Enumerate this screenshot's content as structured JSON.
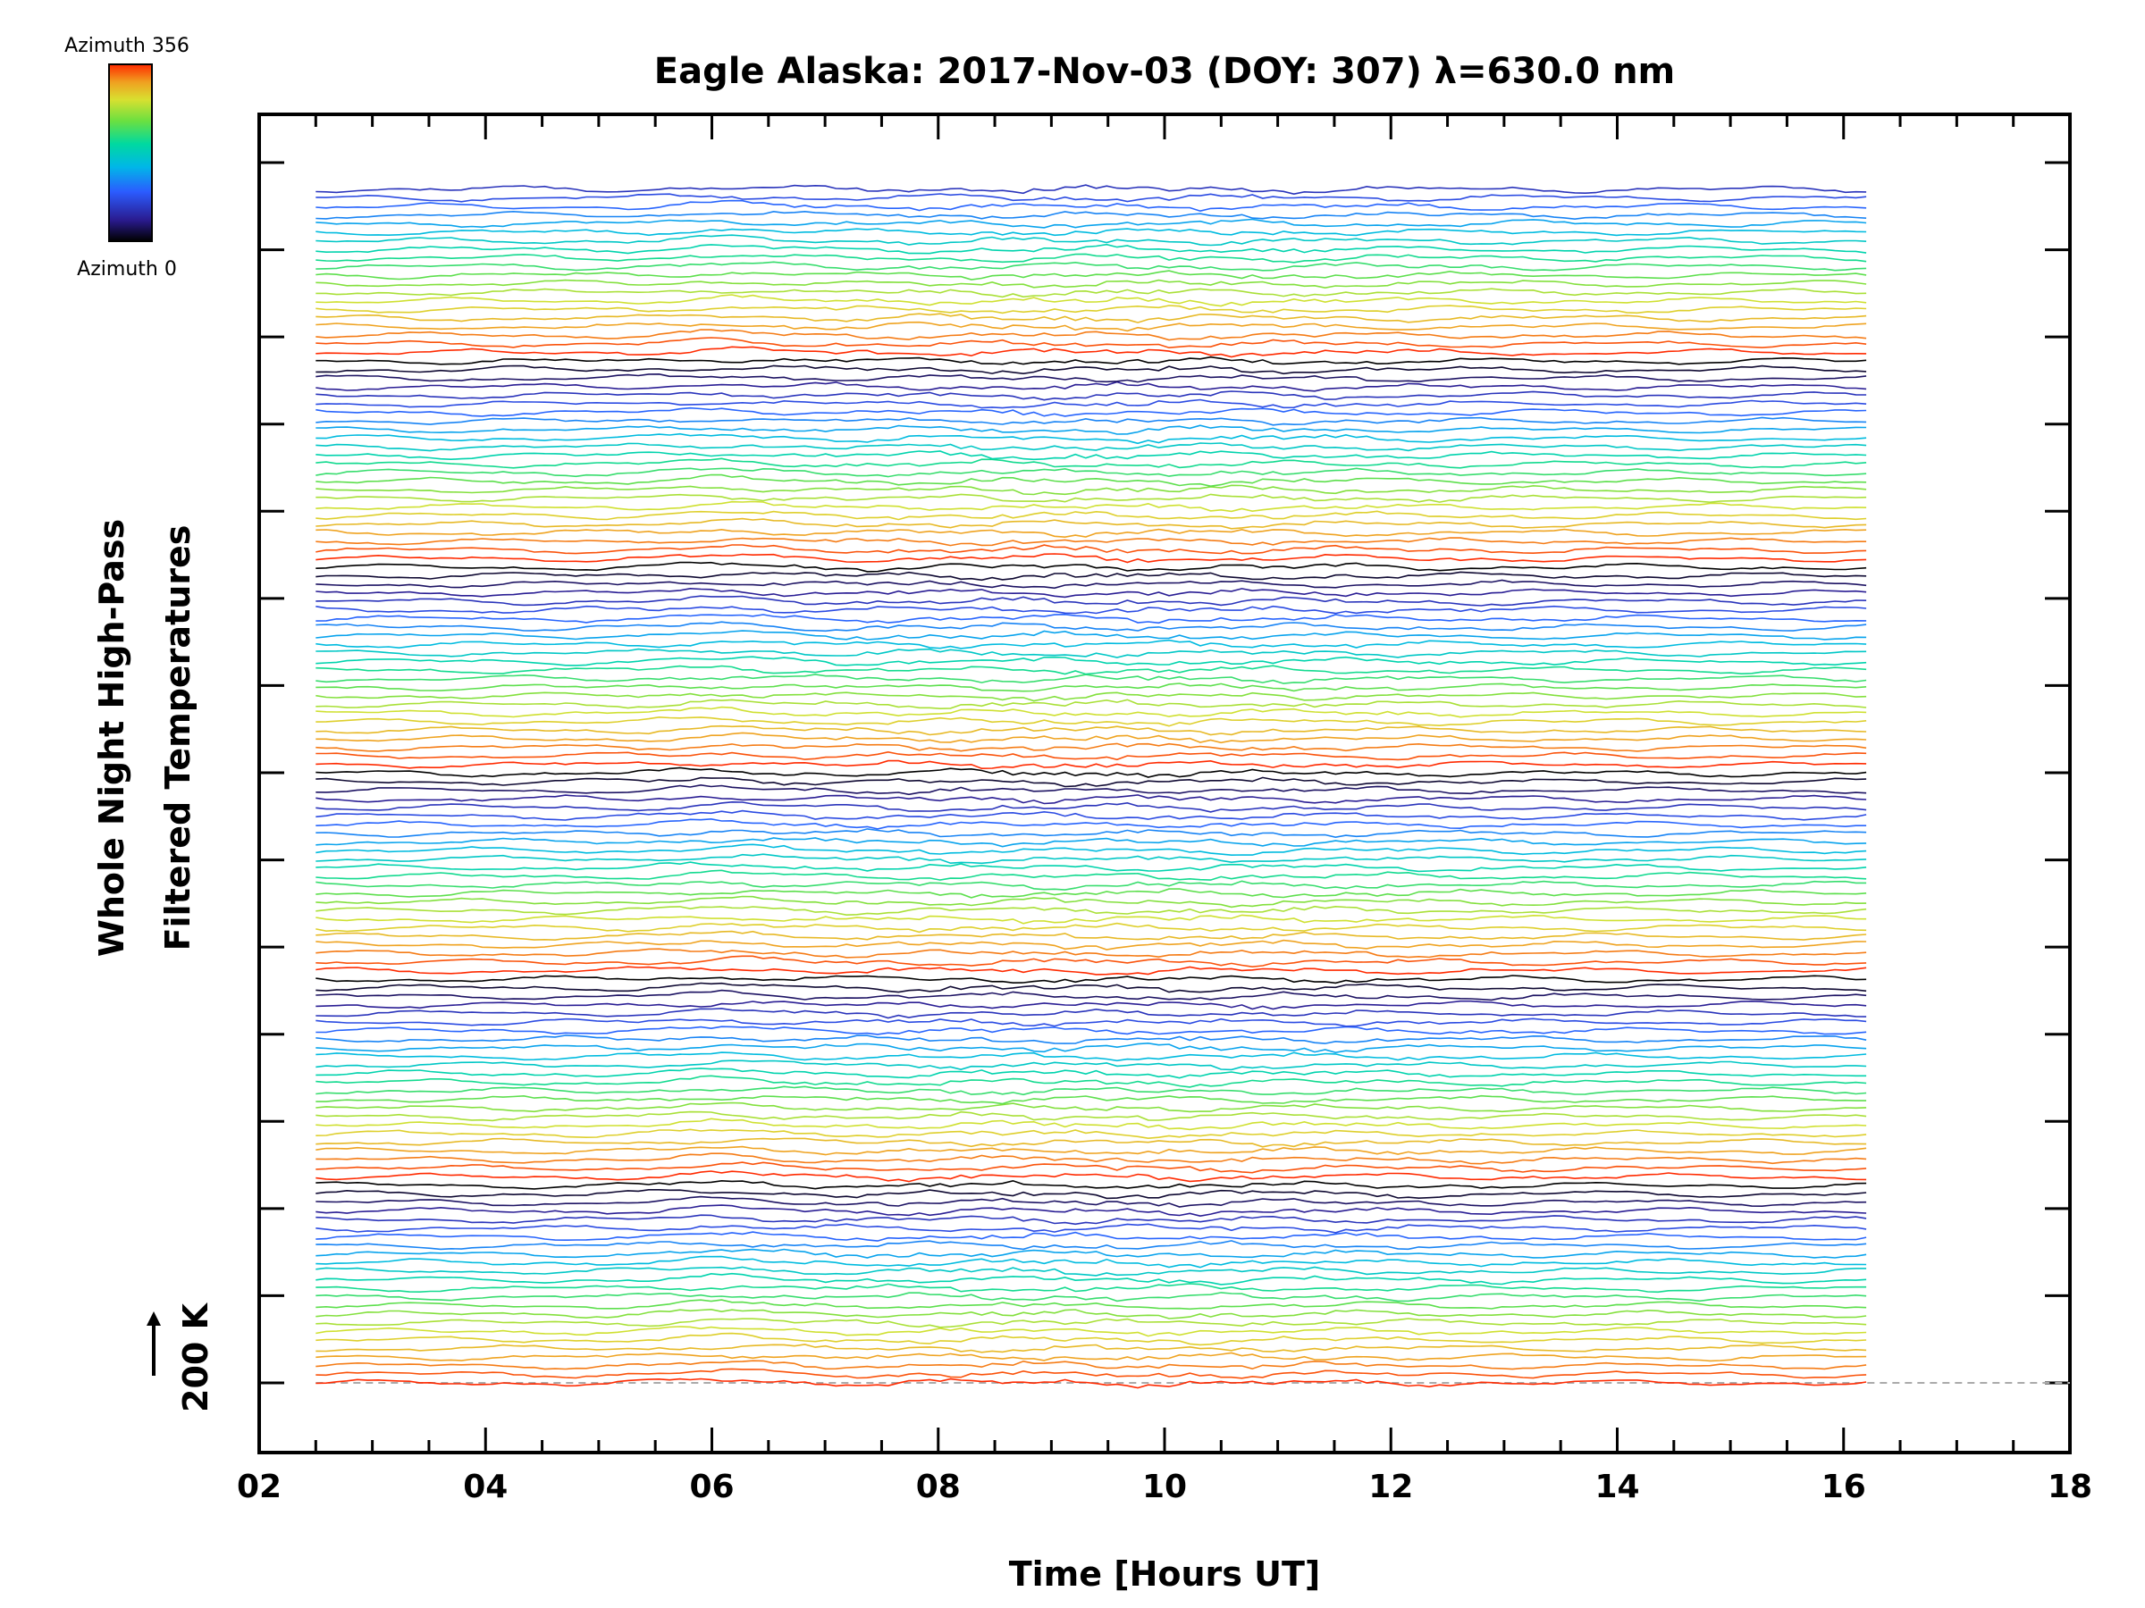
{
  "chart_data": {
    "type": "line",
    "title": "Eagle Alaska: 2017-Nov-03 (DOY: 307) λ=630.0 nm",
    "xlabel": "Time [Hours UT]",
    "ylabel_line1": "Whole Night High-Pass",
    "ylabel_line2": "Filtered Temperatures",
    "scale_label": "200 K",
    "xlim": [
      2,
      18
    ],
    "x_range": [
      2.5,
      16.2
    ],
    "x_ticks": [
      "02",
      "04",
      "06",
      "08",
      "10",
      "12",
      "14",
      "16",
      "18"
    ],
    "n_series": 140,
    "series_groups": 6,
    "colorbar": {
      "top_label": "Azimuth 356",
      "bottom_label": "Azimuth 0",
      "colormap": "rainbow",
      "colors": [
        "#000000",
        "#2a1b8f",
        "#2b5cff",
        "#00b7e8",
        "#00d9a0",
        "#6be040",
        "#d8e030",
        "#f0a020",
        "#ff2a00"
      ]
    },
    "grid": false,
    "baseline_dashed": true
  }
}
